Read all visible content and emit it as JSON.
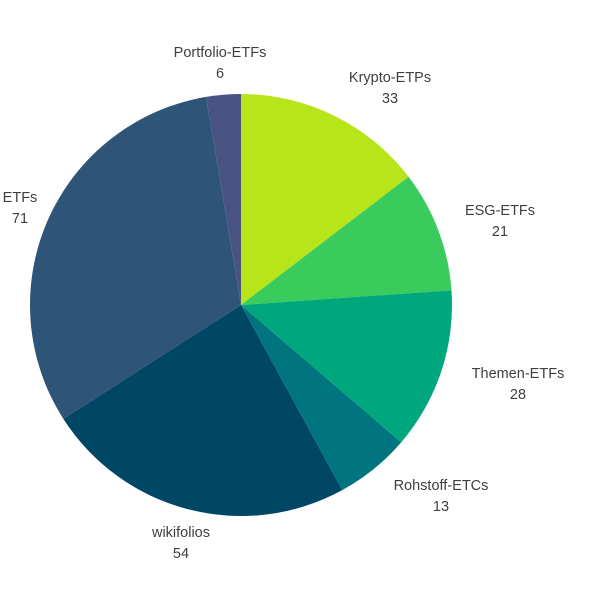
{
  "chart_data": {
    "type": "pie",
    "title": "",
    "start_angle_deg": 0,
    "direction": "clockwise",
    "slices": [
      {
        "label": "Krypto-ETPs",
        "value": 33,
        "value_text": "33",
        "color": "#b8e41a"
      },
      {
        "label": "ESG-ETFs",
        "value": 21,
        "value_text": "21",
        "color": "#39cc5c"
      },
      {
        "label": "Themen-ETFs",
        "value": 28,
        "value_text": "28",
        "color": "#00a77d"
      },
      {
        "label": "Rohstoff-ETCs",
        "value": 13,
        "value_text": "13",
        "color": "#00757f"
      },
      {
        "label": "wikifolios",
        "value": 54,
        "value_text": "54",
        "color": "#004665"
      },
      {
        "label": "ETFs",
        "value": 71,
        "value_text": "71",
        "color": "#2e5478"
      },
      {
        "label": "Portfolio-ETFs",
        "value": 6,
        "value_text": "6",
        "color": "#4a5484"
      }
    ]
  }
}
